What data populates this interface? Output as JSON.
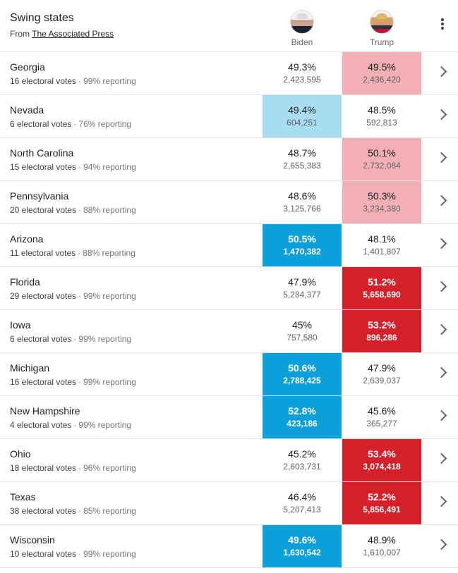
{
  "header": {
    "title": "Swing states",
    "source_prefix": "From ",
    "source_link": "The Associated Press",
    "candidates": [
      {
        "name": "Biden",
        "party_color": "#0aa0da"
      },
      {
        "name": "Trump",
        "party_color": "#d51f29"
      }
    ]
  },
  "colors": {
    "dem_win": "#0aa0da",
    "dem_lead": "#a8dcf0",
    "rep_win": "#d51f29",
    "rep_lead": "#f3b0b4"
  },
  "rows": [
    {
      "state": "Georgia",
      "electoral": "16 electoral votes",
      "reporting": "99% reporting",
      "biden": {
        "pct": "49.3%",
        "votes": "2,423,595",
        "status": "none"
      },
      "trump": {
        "pct": "49.5%",
        "votes": "2,436,420",
        "status": "lead"
      }
    },
    {
      "state": "Nevada",
      "electoral": "6 electoral votes",
      "reporting": "76% reporting",
      "biden": {
        "pct": "49.4%",
        "votes": "604,251",
        "status": "lead"
      },
      "trump": {
        "pct": "48.5%",
        "votes": "592,813",
        "status": "none"
      }
    },
    {
      "state": "North Carolina",
      "electoral": "15 electoral votes",
      "reporting": "94% reporting",
      "biden": {
        "pct": "48.7%",
        "votes": "2,655,383",
        "status": "none"
      },
      "trump": {
        "pct": "50.1%",
        "votes": "2,732,084",
        "status": "lead"
      }
    },
    {
      "state": "Pennsylvania",
      "electoral": "20 electoral votes",
      "reporting": "88% reporting",
      "biden": {
        "pct": "48.6%",
        "votes": "3,125,766",
        "status": "none"
      },
      "trump": {
        "pct": "50.3%",
        "votes": "3,234,380",
        "status": "lead"
      }
    },
    {
      "state": "Arizona",
      "electoral": "11 electoral votes",
      "reporting": "88% reporting",
      "biden": {
        "pct": "50.5%",
        "votes": "1,470,382",
        "status": "win"
      },
      "trump": {
        "pct": "48.1%",
        "votes": "1,401,807",
        "status": "none"
      }
    },
    {
      "state": "Florida",
      "electoral": "29 electoral votes",
      "reporting": "99% reporting",
      "biden": {
        "pct": "47.9%",
        "votes": "5,284,377",
        "status": "none"
      },
      "trump": {
        "pct": "51.2%",
        "votes": "5,658,690",
        "status": "win"
      }
    },
    {
      "state": "Iowa",
      "electoral": "6 electoral votes",
      "reporting": "99% reporting",
      "biden": {
        "pct": "45%",
        "votes": "757,580",
        "status": "none"
      },
      "trump": {
        "pct": "53.2%",
        "votes": "896,286",
        "status": "win"
      }
    },
    {
      "state": "Michigan",
      "electoral": "16 electoral votes",
      "reporting": "99% reporting",
      "biden": {
        "pct": "50.6%",
        "votes": "2,788,425",
        "status": "win"
      },
      "trump": {
        "pct": "47.9%",
        "votes": "2,639,037",
        "status": "none"
      }
    },
    {
      "state": "New Hampshire",
      "electoral": "4 electoral votes",
      "reporting": "99% reporting",
      "biden": {
        "pct": "52.8%",
        "votes": "423,186",
        "status": "win"
      },
      "trump": {
        "pct": "45.6%",
        "votes": "365,277",
        "status": "none"
      }
    },
    {
      "state": "Ohio",
      "electoral": "18 electoral votes",
      "reporting": "96% reporting",
      "biden": {
        "pct": "45.2%",
        "votes": "2,603,731",
        "status": "none"
      },
      "trump": {
        "pct": "53.4%",
        "votes": "3,074,418",
        "status": "win"
      }
    },
    {
      "state": "Texas",
      "electoral": "38 electoral votes",
      "reporting": "85% reporting",
      "biden": {
        "pct": "46.4%",
        "votes": "5,207,413",
        "status": "none"
      },
      "trump": {
        "pct": "52.2%",
        "votes": "5,856,491",
        "status": "win"
      }
    },
    {
      "state": "Wisconsin",
      "electoral": "10 electoral votes",
      "reporting": "99% reporting",
      "biden": {
        "pct": "49.6%",
        "votes": "1,630,542",
        "status": "win"
      },
      "trump": {
        "pct": "48.9%",
        "votes": "1,610,007",
        "status": "none"
      }
    }
  ]
}
